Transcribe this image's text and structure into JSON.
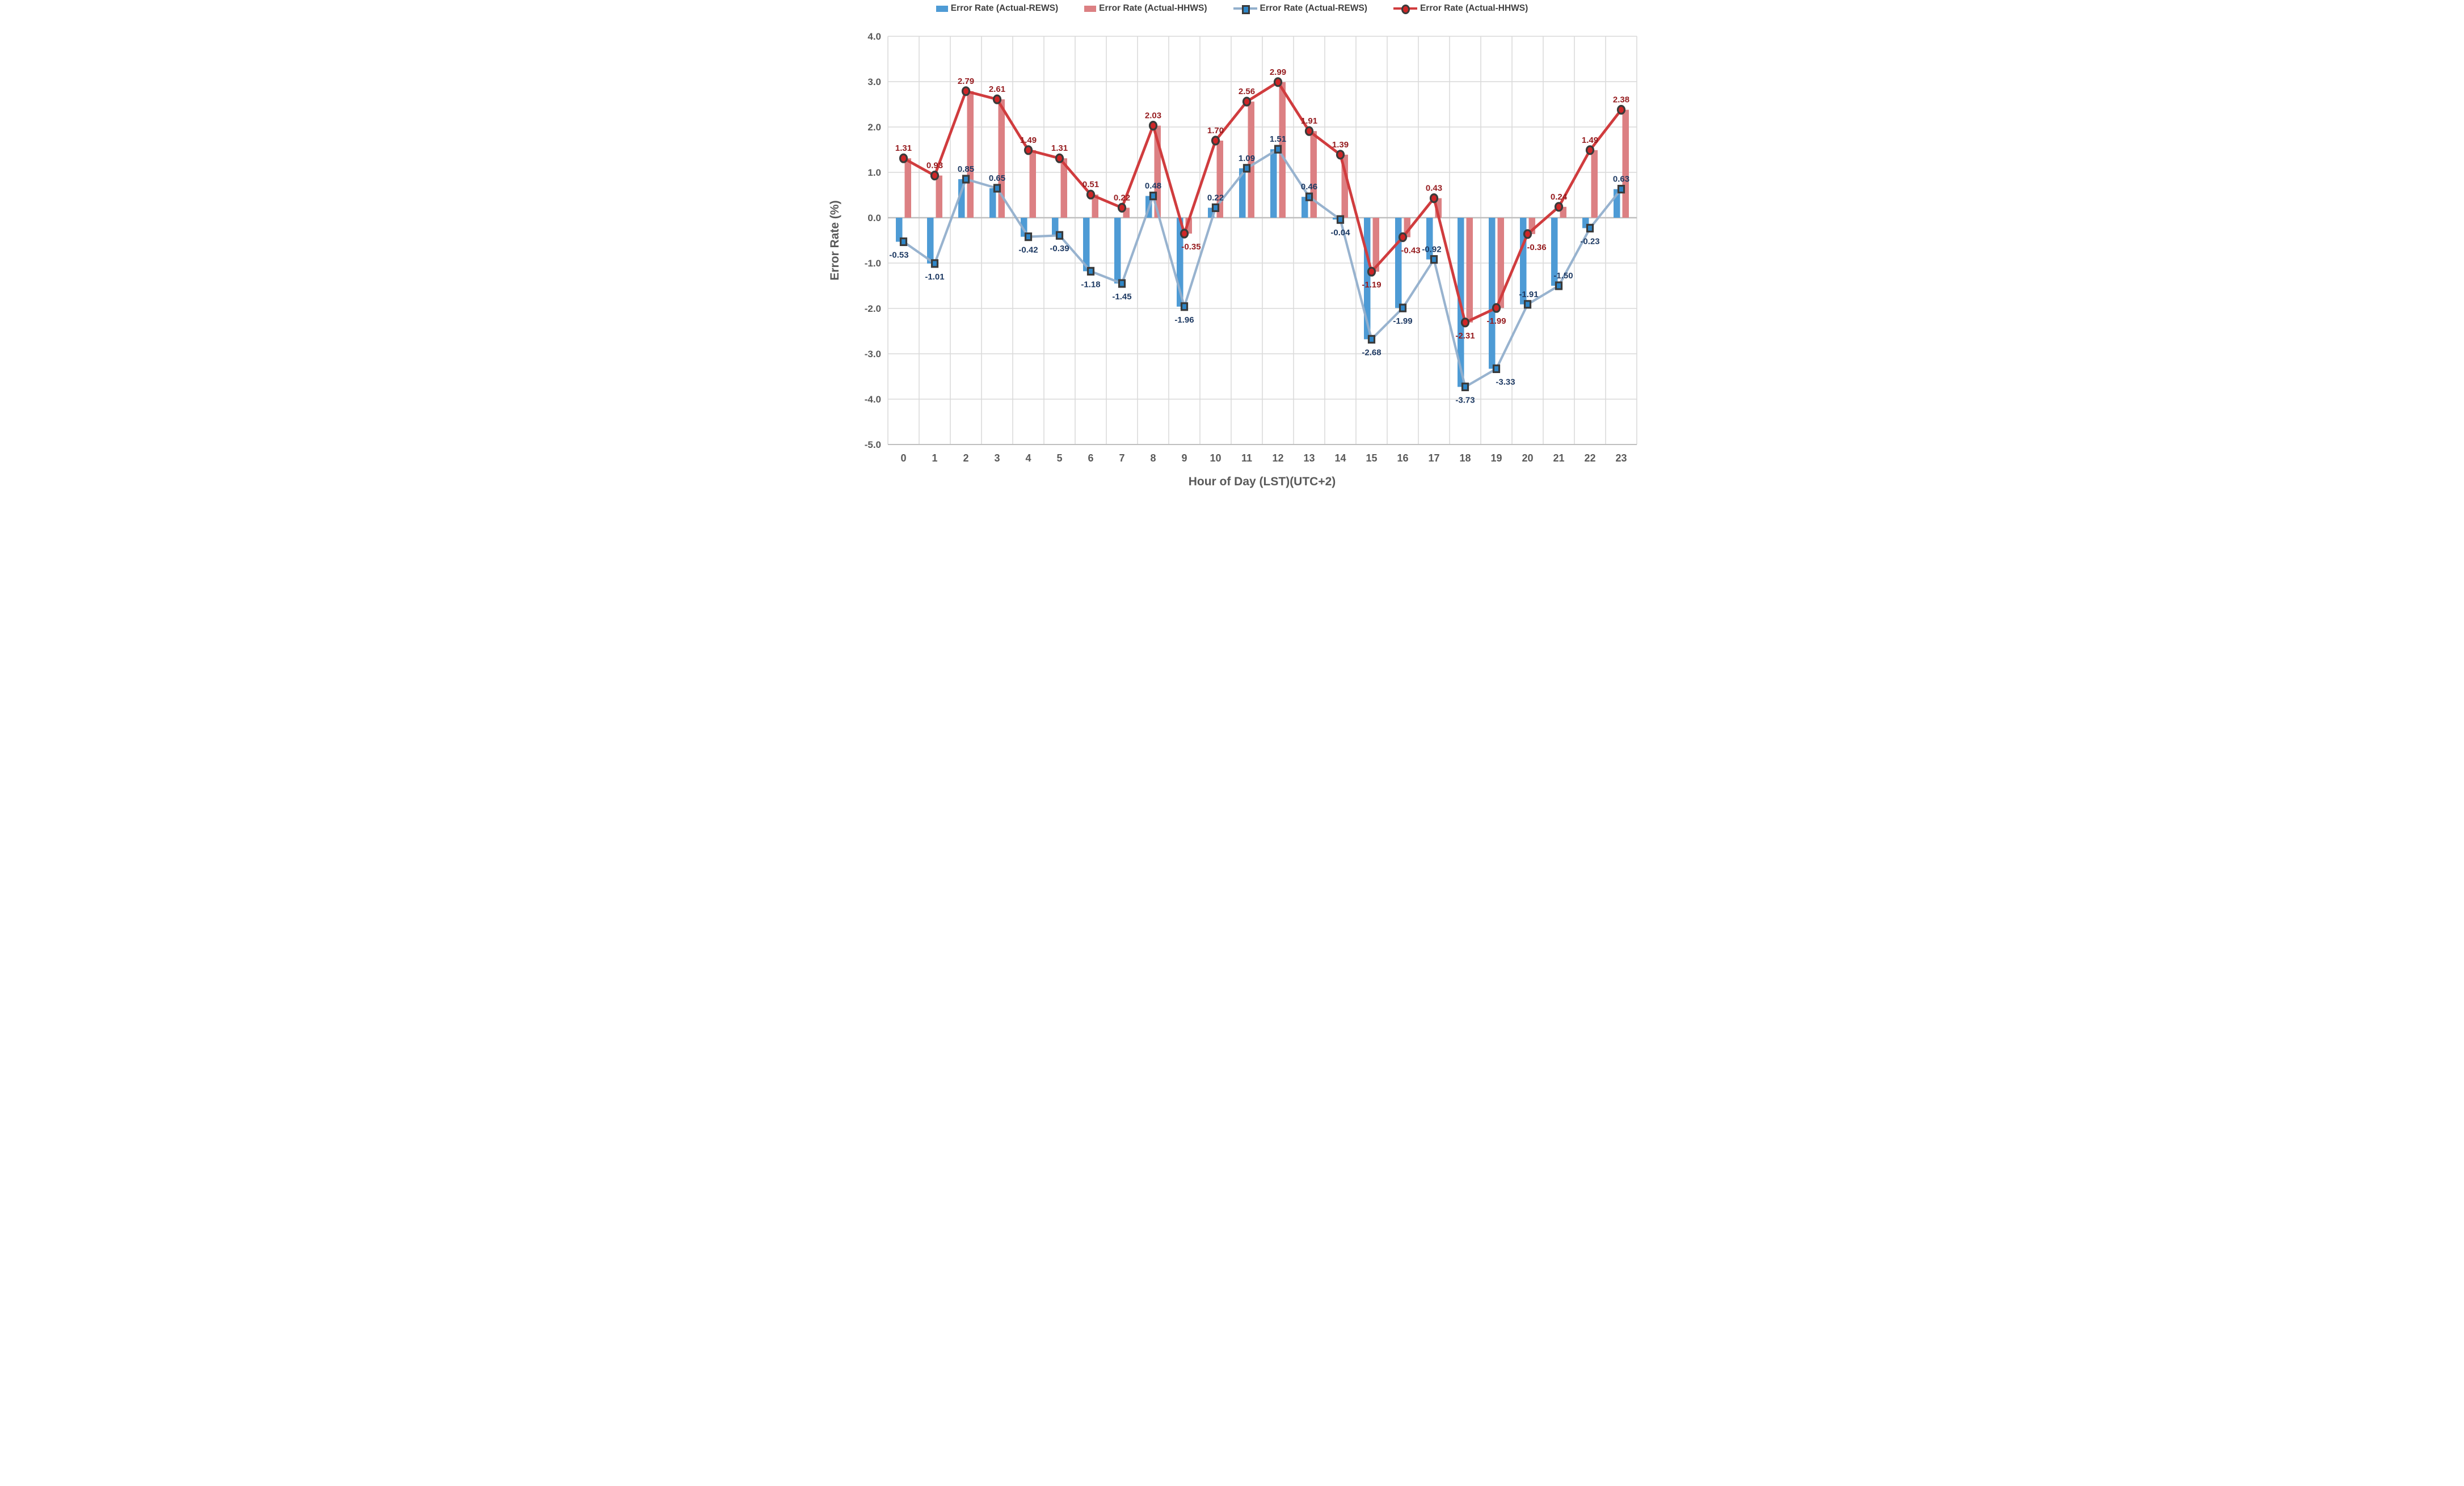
{
  "chart_data": {
    "type": "combo-bar-line",
    "title": "",
    "xlabel": "Hour of Day (LST)(UTC+2)",
    "ylabel": "Error Rate (%)",
    "categories": [
      0,
      1,
      2,
      3,
      4,
      5,
      6,
      7,
      8,
      9,
      10,
      11,
      12,
      13,
      14,
      15,
      16,
      17,
      18,
      19,
      20,
      21,
      22,
      23
    ],
    "ylim": [
      -5.0,
      4.0
    ],
    "ytick_step": 1.0,
    "ytick_labels": [
      "4.0",
      "3.0",
      "2.0",
      "1.0",
      "0.0",
      "-1.0",
      "-2.0",
      "-3.0",
      "-4.0",
      "-5.0"
    ],
    "grid": true,
    "legend_position": "top",
    "data_label_format": "0.00",
    "series": [
      {
        "name": "Error Rate (Actual-REWS)",
        "type": "bar",
        "color": "#4E9BD5",
        "values": [
          -0.53,
          -1.01,
          0.85,
          0.65,
          -0.42,
          -0.39,
          -1.18,
          -1.45,
          0.48,
          -1.96,
          0.22,
          1.09,
          1.51,
          0.46,
          -0.04,
          -2.68,
          -1.99,
          -0.92,
          -3.73,
          -3.33,
          -1.91,
          -1.5,
          -0.23,
          0.63
        ]
      },
      {
        "name": "Error Rate (Actual-HHWS)",
        "type": "bar",
        "color": "#DC8083",
        "values": [
          1.31,
          0.93,
          2.79,
          2.61,
          1.49,
          1.31,
          0.51,
          0.22,
          2.03,
          -0.35,
          1.7,
          2.56,
          2.99,
          1.91,
          1.39,
          -1.19,
          -0.43,
          0.43,
          -2.31,
          -1.99,
          -0.36,
          0.24,
          1.49,
          2.38
        ]
      },
      {
        "name": "Error Rate (Actual-REWS)",
        "type": "line",
        "marker": "square",
        "color": "#92AFCC",
        "marker_fill": "#2E86C7",
        "marker_edge": "#3A3A3A",
        "label_color": "#1E3A63",
        "values": [
          -0.53,
          -1.01,
          0.85,
          0.65,
          -0.42,
          -0.39,
          -1.18,
          -1.45,
          0.48,
          -1.96,
          0.22,
          1.09,
          1.51,
          0.46,
          -0.04,
          -2.68,
          -1.99,
          -0.92,
          -3.73,
          -3.33,
          -1.91,
          -1.5,
          -0.23,
          0.63
        ]
      },
      {
        "name": "Error Rate (Actual-HHWS)",
        "type": "line",
        "marker": "circle",
        "color": "#D03C3E",
        "marker_fill": "#CF2627",
        "marker_edge": "#3A3A3A",
        "label_color": "#951B1E",
        "values": [
          1.31,
          0.93,
          2.79,
          2.61,
          1.49,
          1.31,
          0.51,
          0.22,
          2.03,
          -0.35,
          1.7,
          2.56,
          2.99,
          1.91,
          1.39,
          -1.19,
          -0.43,
          0.43,
          -2.31,
          -1.99,
          -0.36,
          0.24,
          1.49,
          2.38
        ]
      }
    ],
    "colors": {
      "axis_text": "#595959",
      "gridline": "#D9D9D9",
      "zero_line": "#BFBFBF",
      "legend_text": "#404040",
      "background": "#FFFFFF"
    }
  }
}
